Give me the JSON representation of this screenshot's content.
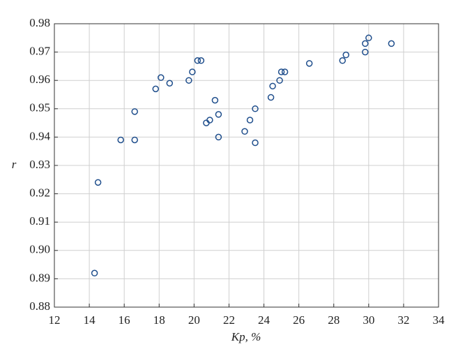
{
  "chart_data": {
    "type": "scatter",
    "x_label": "Kp, %",
    "y_label": "r",
    "x": [
      14.3,
      14.5,
      15.8,
      16.6,
      16.6,
      17.8,
      18.1,
      18.6,
      19.7,
      19.9,
      20.2,
      20.4,
      20.7,
      20.9,
      21.2,
      21.4,
      21.4,
      22.9,
      23.2,
      23.5,
      23.5,
      24.4,
      24.5,
      24.9,
      25.0,
      25.2,
      26.6,
      28.5,
      28.7,
      29.8,
      29.8,
      30.0,
      31.3
    ],
    "values": [
      0.892,
      0.924,
      0.939,
      0.949,
      0.939,
      0.957,
      0.961,
      0.959,
      0.96,
      0.963,
      0.967,
      0.967,
      0.945,
      0.946,
      0.953,
      0.948,
      0.94,
      0.942,
      0.946,
      0.95,
      0.938,
      0.954,
      0.958,
      0.96,
      0.963,
      0.963,
      0.966,
      0.967,
      0.969,
      0.97,
      0.973,
      0.975,
      0.973
    ],
    "color": "#1f4e8c",
    "xlim": [
      12,
      34
    ],
    "xticks": [
      12,
      14,
      16,
      18,
      20,
      22,
      24,
      26,
      28,
      30,
      32,
      34
    ],
    "ylim": [
      0.88,
      0.98
    ],
    "yticks": [
      0.88,
      0.89,
      {
        "value": 0.9,
        "label": "0.90"
      },
      0.91,
      0.92,
      0.93,
      0.94,
      0.95,
      0.96,
      0.97,
      0.98
    ],
    "grid": true
  }
}
